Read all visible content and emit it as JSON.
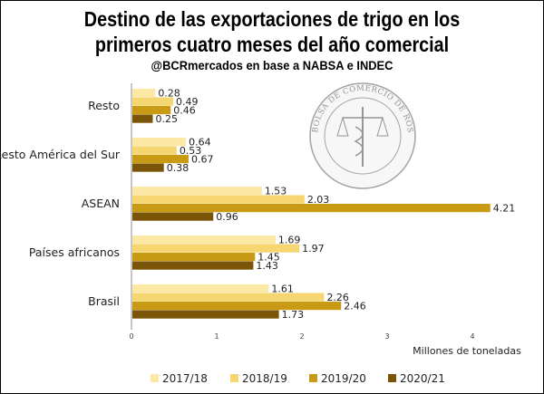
{
  "header": {
    "title_line1": "Destino de las exportaciones de trigo en los",
    "title_line2": "primeros cuatro meses del año comercial",
    "subtitle": "@BCRmercados en base a NABSA e INDEC"
  },
  "seal": {
    "text": "BOLSA DE COMERCIO DE ROSARIO"
  },
  "chart_data": {
    "type": "bar",
    "orientation": "horizontal",
    "title": "Destino de las exportaciones de trigo en los primeros cuatro meses del año comercial",
    "subtitle": "@BCRmercados en base a NABSA e INDEC",
    "categories": [
      "Resto",
      "Resto América del Sur",
      "ASEAN",
      "Países africanos",
      "Brasil"
    ],
    "series": [
      {
        "name": "2017/18",
        "color": "#FCE9A6",
        "values": [
          0.28,
          0.64,
          1.53,
          1.69,
          1.61
        ],
        "labels": [
          "0.28",
          "0.64",
          "1.53",
          "1.69",
          "1.61"
        ]
      },
      {
        "name": "2018/19",
        "color": "#F5D670",
        "values": [
          0.49,
          0.53,
          2.03,
          1.97,
          2.26
        ],
        "labels": [
          "0.49",
          "0.53",
          "2.03",
          "1.97",
          "2.26"
        ]
      },
      {
        "name": "2019/20",
        "color": "#C99A14",
        "values": [
          0.46,
          0.67,
          4.21,
          1.45,
          2.46
        ],
        "labels": [
          "0.46",
          "0.67",
          "4.21",
          "1.45",
          "2.46"
        ]
      },
      {
        "name": "2020/21",
        "color": "#7A5508",
        "values": [
          0.25,
          0.38,
          0.96,
          1.43,
          1.73
        ],
        "labels": [
          "0.25",
          "0.38",
          "0.96",
          "1.43",
          "1.73"
        ]
      }
    ],
    "xlabel": "Millones de toneladas",
    "ylabel": "",
    "xlim": [
      0,
      4.4
    ],
    "xticks": [
      0,
      1,
      2,
      3,
      4
    ],
    "xtick_labels": [
      "0",
      "1",
      "2",
      "3",
      "4"
    ],
    "grid": false,
    "legend_position": "bottom"
  }
}
